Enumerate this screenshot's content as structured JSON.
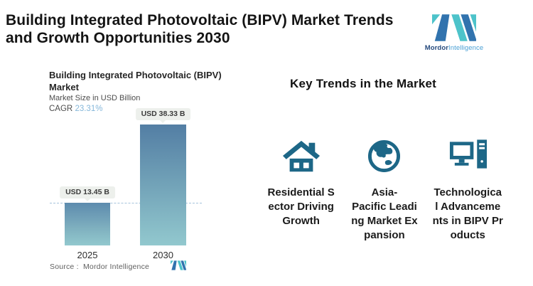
{
  "page": {
    "title": "Building Integrated Photovoltaic (BIPV) Market Trends\nand Growth Opportunities 2030"
  },
  "brand": {
    "name_bold": "Mordor",
    "name_light": "Intelligence",
    "logo_dark_blue": "#3173AE",
    "logo_teal": "#4DC3CA"
  },
  "chart": {
    "title": "Building Integrated Photovoltaic (BIPV)\nMarket",
    "subtitle": "Market Size in USD Billion",
    "cagr_label": "CAGR",
    "cagr_value": "23.31%",
    "cagr_value_color": "#85b7da",
    "source_label": "Source :",
    "source_value": "Mordor Intelligence",
    "bar_gradient_top": "#5d8bae",
    "bar_gradient_bottom": "#92c8ce",
    "dashed_line_color": "#a5c3dc",
    "badge_bg": "#edf0ec"
  },
  "chart_data": {
    "type": "bar",
    "title": "Building Integrated Photovoltaic (BIPV) Market",
    "ylabel": "Market Size in USD Billion",
    "categories": [
      "2025",
      "2030"
    ],
    "values": [
      13.45,
      38.33
    ],
    "value_labels": [
      "USD 13.45 B",
      "USD 38.33 B"
    ],
    "cagr_percent": 23.31,
    "reference_line_at": 13.45,
    "ylim": [
      0,
      38.33
    ],
    "grid": "off",
    "legend": "none"
  },
  "trends": {
    "heading": "Key Trends in the Market",
    "icon_color": "#1d6787",
    "items": [
      {
        "icon": "house-icon",
        "label": "Residential S\nector Driving\nGrowth"
      },
      {
        "icon": "globe-asia-icon",
        "label": "Asia-\nPacific Leadi\nng Market Ex\npansion"
      },
      {
        "icon": "desktop-computer-icon",
        "label": "Technologica\nl Advanceme\nnts in BIPV Pr\noducts"
      }
    ]
  }
}
